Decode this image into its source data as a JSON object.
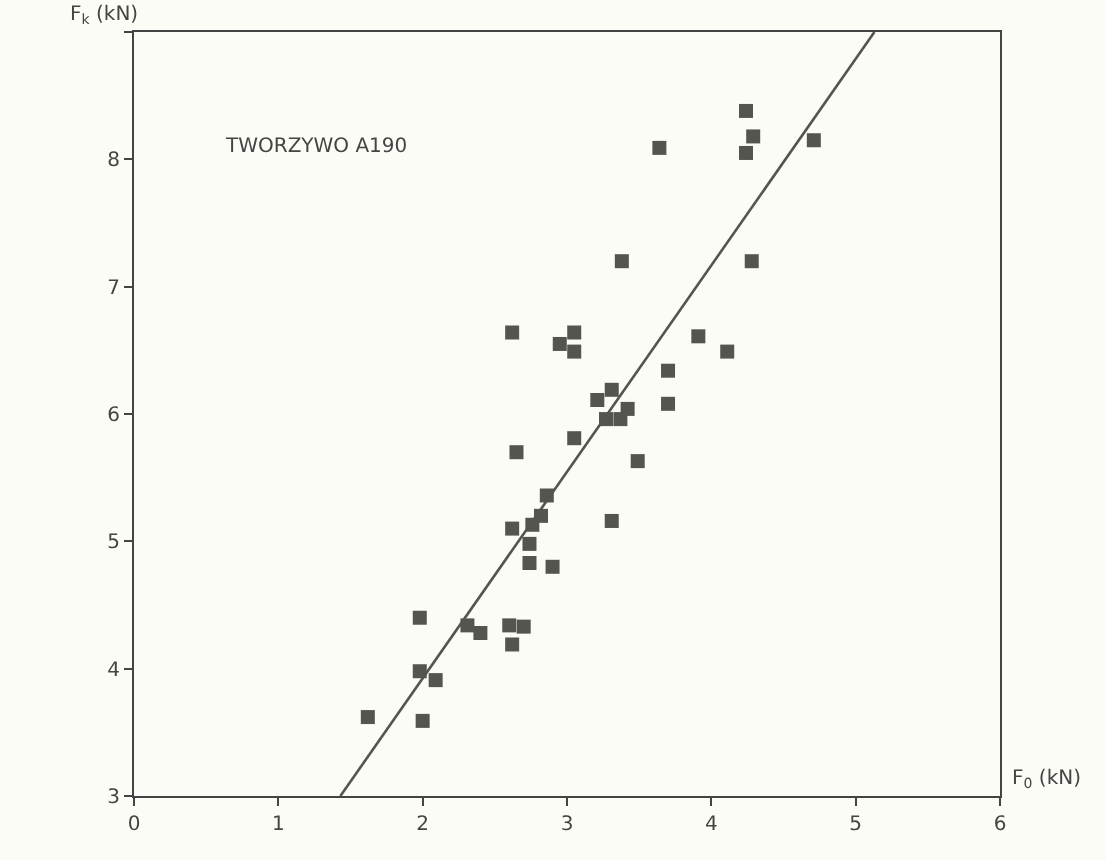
{
  "chart_data": {
    "type": "scatter",
    "xlabel": "F$_{0}$ (kN)",
    "ylabel": "F$_{k}$ (kN)",
    "annotations": [
      "TWORZYWO A190"
    ],
    "xlim": [
      0,
      6
    ],
    "ylim": [
      3,
      9
    ],
    "xticks": [
      0,
      1,
      2,
      3,
      4,
      5,
      6
    ],
    "yticks": [
      3,
      4,
      5,
      6,
      7,
      8,
      {
        "value": 9,
        "label": null
      }
    ],
    "grid": false,
    "marker": "square",
    "series": [
      {
        "color": "#555550",
        "x": [
          1.62,
          1.98,
          1.98,
          2.0,
          2.09,
          2.31,
          2.4,
          2.6,
          2.62,
          2.7,
          2.62,
          2.65,
          2.62,
          2.74,
          2.74,
          2.76,
          2.82,
          2.86,
          2.9,
          2.95,
          3.05,
          3.05,
          3.05,
          3.21,
          3.27,
          3.31,
          3.37,
          3.42,
          3.31,
          3.38,
          3.49,
          3.64,
          3.7,
          3.7,
          3.91,
          4.11,
          4.24,
          4.29,
          4.24,
          4.71,
          4.28
        ],
        "values": [
          3.62,
          3.98,
          4.4,
          3.59,
          3.91,
          4.34,
          4.28,
          4.34,
          4.19,
          4.33,
          5.1,
          5.7,
          6.64,
          4.83,
          4.98,
          5.13,
          5.2,
          5.36,
          4.8,
          6.55,
          6.64,
          6.49,
          5.81,
          6.11,
          5.96,
          6.19,
          5.96,
          6.04,
          5.16,
          7.2,
          5.63,
          8.09,
          6.34,
          6.08,
          6.61,
          6.49,
          8.38,
          8.18,
          8.05,
          8.15,
          7.2
        ]
      },
      {
        "type": "line",
        "color": "#555550",
        "line_style": "solid",
        "marker": "none",
        "x": [
          1.43,
          5.13
        ],
        "values": [
          3,
          9
        ]
      }
    ]
  }
}
